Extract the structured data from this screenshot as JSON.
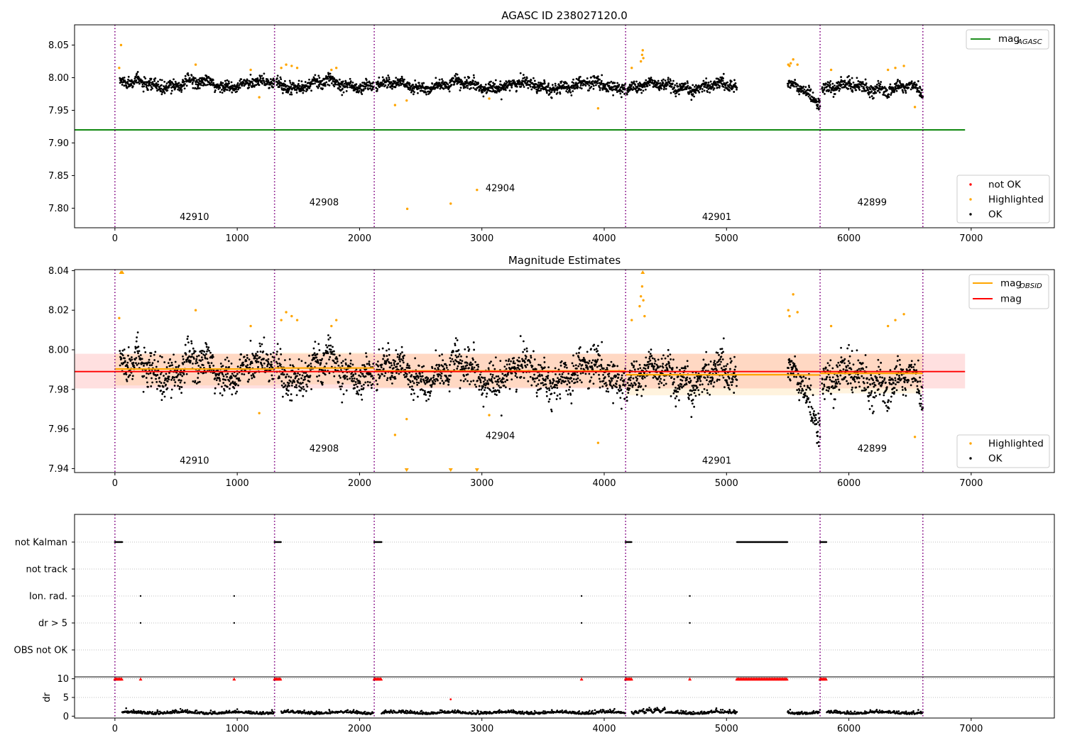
{
  "chart_data": [
    {
      "type": "scatter",
      "title": "AGASC ID 238027120.0",
      "xlim": [
        -330,
        7680
      ],
      "ylim": [
        7.77,
        8.081
      ],
      "x_ticks": [
        0,
        1000,
        2000,
        3000,
        4000,
        5000,
        6000,
        7000
      ],
      "y_ticks": [
        7.8,
        7.85,
        7.9,
        7.95,
        8.0,
        8.05
      ],
      "y_tick_labels": [
        "7.80",
        "7.85",
        "7.90",
        "7.95",
        "8.00",
        "8.05"
      ],
      "obs_boundaries": [
        0,
        1305,
        2120,
        4175,
        5765,
        6605
      ],
      "obs_labels": [
        {
          "text": "42910",
          "x": 650,
          "y": 7.782
        },
        {
          "text": "42908",
          "x": 1710,
          "y": 7.804
        },
        {
          "text": "42904",
          "x": 3150,
          "y": 7.826
        },
        {
          "text": "42901",
          "x": 4920,
          "y": 7.782
        },
        {
          "text": "42899",
          "x": 6190,
          "y": 7.804
        }
      ],
      "mag_agasc": {
        "value": 7.92,
        "x_range": [
          -330,
          6950
        ],
        "color": "#008000"
      },
      "segments": [
        {
          "x0": 40,
          "x1": 1305,
          "mean": 7.99
        },
        {
          "x0": 1320,
          "x1": 2115,
          "mean": 7.99
        },
        {
          "x0": 2135,
          "x1": 4175,
          "mean": 7.988
        },
        {
          "x0": 4185,
          "x1": 5085,
          "mean": 7.986
        },
        {
          "x0": 5500,
          "x1": 5765,
          "mean": 7.985
        },
        {
          "x0": 5780,
          "x1": 6605,
          "mean": 7.985
        }
      ],
      "highlighted": [
        [
          50,
          8.05
        ],
        [
          35,
          8.015
        ],
        [
          660,
          8.02
        ],
        [
          1110,
          8.012
        ],
        [
          1180,
          7.97
        ],
        [
          1360,
          8.015
        ],
        [
          1400,
          8.02
        ],
        [
          1445,
          8.018
        ],
        [
          1490,
          8.015
        ],
        [
          1770,
          8.012
        ],
        [
          1810,
          8.015
        ],
        [
          2290,
          7.958
        ],
        [
          2385,
          7.965
        ],
        [
          2390,
          7.799
        ],
        [
          2745,
          7.807
        ],
        [
          2960,
          7.828
        ],
        [
          3060,
          7.968
        ],
        [
          3950,
          7.953
        ],
        [
          4225,
          8.015
        ],
        [
          4300,
          8.025
        ],
        [
          4310,
          8.035
        ],
        [
          4315,
          8.042
        ],
        [
          4320,
          8.03
        ],
        [
          5505,
          8.02
        ],
        [
          5515,
          8.018
        ],
        [
          5525,
          8.022
        ],
        [
          5545,
          8.028
        ],
        [
          5580,
          8.02
        ],
        [
          5855,
          8.012
        ],
        [
          6320,
          8.012
        ],
        [
          6380,
          8.015
        ],
        [
          6450,
          8.018
        ],
        [
          6540,
          7.955
        ]
      ],
      "not_ok": [],
      "legend_upper": [
        {
          "label": "mag",
          "sub": "AGASC",
          "color": "#008000"
        }
      ],
      "legend_lower": [
        {
          "label": "not OK",
          "color": "#ff0000"
        },
        {
          "label": "Highlighted",
          "color": "#ffa500"
        },
        {
          "label": "OK",
          "color": "#000000"
        }
      ]
    },
    {
      "type": "scatter",
      "title": "Magnitude Estimates",
      "xlim": [
        -330,
        7680
      ],
      "ylim": [
        7.938,
        8.0405
      ],
      "x_ticks": [
        0,
        1000,
        2000,
        3000,
        4000,
        5000,
        6000,
        7000
      ],
      "y_ticks": [
        7.94,
        7.96,
        7.98,
        8.0,
        8.02,
        8.04
      ],
      "y_tick_labels": [
        "7.94",
        "7.96",
        "7.98",
        "8.00",
        "8.02",
        "8.04"
      ],
      "obs_boundaries": [
        0,
        1305,
        2120,
        4175,
        5765,
        6605
      ],
      "obs_labels": [
        {
          "text": "42910",
          "x": 650,
          "y": 7.9425
        },
        {
          "text": "42908",
          "x": 1710,
          "y": 7.9485
        },
        {
          "text": "42904",
          "x": 3150,
          "y": 7.955
        },
        {
          "text": "42901",
          "x": 4920,
          "y": 7.9425
        },
        {
          "text": "42899",
          "x": 6190,
          "y": 7.9485
        }
      ],
      "mag": {
        "value": 7.989,
        "band": [
          7.9805,
          7.998
        ],
        "x_range": [
          -330,
          6950
        ],
        "color": "#ff0000"
      },
      "mag_obsid": [
        {
          "x0": 0,
          "x1": 1305,
          "value": 7.9903,
          "band": [
            7.982,
            7.998
          ]
        },
        {
          "x0": 1305,
          "x1": 2120,
          "value": 7.9908,
          "band": [
            7.9825,
            7.9985
          ]
        },
        {
          "x0": 2120,
          "x1": 4175,
          "value": 7.9893,
          "band": [
            7.981,
            7.998
          ]
        },
        {
          "x0": 4175,
          "x1": 5500,
          "value": 7.9874,
          "band": [
            7.977,
            7.998
          ]
        },
        {
          "x0": 5500,
          "x1": 5765,
          "value": 7.9873,
          "band": [
            7.977,
            7.998
          ]
        },
        {
          "x0": 5765,
          "x1": 6605,
          "value": 7.9881,
          "band": [
            7.978,
            7.998
          ]
        }
      ],
      "highlighted": [
        [
          35,
          8.016
        ],
        [
          660,
          8.02
        ],
        [
          1110,
          8.012
        ],
        [
          1180,
          7.968
        ],
        [
          1360,
          8.015
        ],
        [
          1400,
          8.019
        ],
        [
          1445,
          8.017
        ],
        [
          1490,
          8.015
        ],
        [
          1770,
          8.012
        ],
        [
          1810,
          8.015
        ],
        [
          2290,
          7.957
        ],
        [
          2385,
          7.965
        ],
        [
          3060,
          7.967
        ],
        [
          3950,
          7.953
        ],
        [
          4225,
          8.015
        ],
        [
          4290,
          8.022
        ],
        [
          4300,
          8.027
        ],
        [
          4310,
          8.032
        ],
        [
          4320,
          8.025
        ],
        [
          4330,
          8.017
        ],
        [
          5505,
          8.02
        ],
        [
          5515,
          8.017
        ],
        [
          5545,
          8.028
        ],
        [
          5580,
          8.019
        ],
        [
          5855,
          8.012
        ],
        [
          6320,
          8.012
        ],
        [
          6380,
          8.015
        ],
        [
          6450,
          8.018
        ],
        [
          6540,
          7.956
        ]
      ],
      "clipped_up": [
        50,
        60,
        4315
      ],
      "clipped_down": [
        2385,
        2745,
        2960
      ],
      "legend_upper": [
        {
          "label": "mag",
          "sub": "OBSID",
          "color": "#ffa500"
        },
        {
          "label": "mag",
          "sub": "",
          "color": "#ff0000"
        }
      ],
      "legend_lower": [
        {
          "label": "Highlighted",
          "color": "#ffa500"
        },
        {
          "label": "OK",
          "color": "#000000"
        }
      ]
    },
    {
      "type": "scatter",
      "title": "",
      "xlim": [
        -330,
        7680
      ],
      "obs_boundaries": [
        0,
        1305,
        2120,
        4175,
        5765,
        6605
      ],
      "flag_rows": [
        "not Kalman",
        "not track",
        "Ion. rad.",
        "dr > 5",
        "OBS not OK"
      ],
      "flags": {
        "not Kalman": [
          [
            0,
            60
          ],
          [
            1305,
            1360
          ],
          [
            2120,
            2180
          ],
          [
            4175,
            4225
          ],
          [
            5085,
            5500
          ],
          [
            5765,
            5820
          ]
        ],
        "not track": [],
        "Ion. rad.": [
          [
            210,
            210
          ],
          [
            975,
            975
          ],
          [
            3815,
            3815
          ],
          [
            4700,
            4700
          ]
        ],
        "dr > 5": [
          [
            210,
            210
          ],
          [
            975,
            975
          ],
          [
            3815,
            3815
          ],
          [
            4700,
            4700
          ]
        ],
        "OBS not OK": []
      }
    },
    {
      "type": "scatter",
      "title": "",
      "ylabel": "dr",
      "xlim": [
        -330,
        7680
      ],
      "ylim": [
        -0.5,
        10.5
      ],
      "x_ticks": [
        0,
        1000,
        2000,
        3000,
        4000,
        5000,
        6000,
        7000
      ],
      "y_ticks": [
        0,
        5,
        10
      ],
      "y_tick_labels": [
        "0",
        "5",
        "10"
      ],
      "obs_boundaries": [
        0,
        1305,
        2120,
        4175,
        5765,
        6605
      ],
      "clipped_red": [
        [
          0,
          60
        ],
        [
          1305,
          1360
        ],
        [
          2120,
          2180
        ],
        [
          4175,
          4225
        ],
        [
          5085,
          5500
        ],
        [
          5765,
          5820
        ]
      ],
      "clipped_red_single": [
        210,
        975,
        3815,
        4700
      ],
      "red_points": [
        [
          2745,
          4.5
        ]
      ],
      "ok_segments": [
        [
          60,
          1305
        ],
        [
          1360,
          2115
        ],
        [
          2180,
          4175
        ],
        [
          4225,
          5085
        ],
        [
          5500,
          5765
        ],
        [
          5820,
          6605
        ]
      ]
    }
  ]
}
